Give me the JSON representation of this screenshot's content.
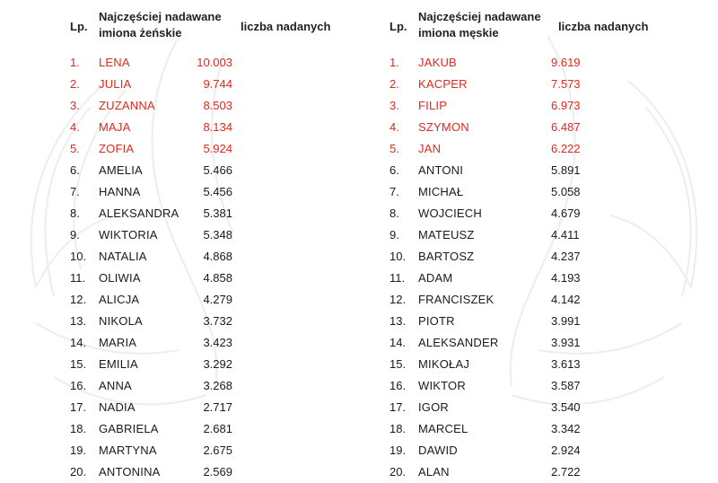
{
  "female": {
    "header": {
      "lp": "Lp.",
      "name_line1": "Najczęściej nadawane",
      "name_line2": "imiona żeńskie",
      "count": "liczba nadanych"
    },
    "rows": [
      {
        "lp": "1.",
        "name": "LENA",
        "count": "10.003"
      },
      {
        "lp": "2.",
        "name": "JULIA",
        "count": "9.744"
      },
      {
        "lp": "3.",
        "name": "ZUZANNA",
        "count": "8.503"
      },
      {
        "lp": "4.",
        "name": "MAJA",
        "count": "8.134"
      },
      {
        "lp": "5.",
        "name": "ZOFIA",
        "count": "5.924"
      },
      {
        "lp": "6.",
        "name": "AMELIA",
        "count": "5.466"
      },
      {
        "lp": "7.",
        "name": "HANNA",
        "count": "5.456"
      },
      {
        "lp": "8.",
        "name": "ALEKSANDRA",
        "count": "5.381"
      },
      {
        "lp": "9.",
        "name": "WIKTORIA",
        "count": "5.348"
      },
      {
        "lp": "10.",
        "name": "NATALIA",
        "count": "4.868"
      },
      {
        "lp": "11.",
        "name": "OLIWIA",
        "count": "4.858"
      },
      {
        "lp": "12.",
        "name": "ALICJA",
        "count": "4.279"
      },
      {
        "lp": "13.",
        "name": "NIKOLA",
        "count": "3.732"
      },
      {
        "lp": "14.",
        "name": "MARIA",
        "count": "3.423"
      },
      {
        "lp": "15.",
        "name": "EMILIA",
        "count": "3.292"
      },
      {
        "lp": "16.",
        "name": "ANNA",
        "count": "3.268"
      },
      {
        "lp": "17.",
        "name": "NADIA",
        "count": "2.717"
      },
      {
        "lp": "18.",
        "name": "GABRIELA",
        "count": "2.681"
      },
      {
        "lp": "19.",
        "name": "MARTYNA",
        "count": "2.675"
      },
      {
        "lp": "20.",
        "name": "ANTONINA",
        "count": "2.569"
      }
    ]
  },
  "male": {
    "header": {
      "lp": "Lp.",
      "name_line1": "Najczęściej nadawane",
      "name_line2": "imiona męskie",
      "count": "liczba nadanych"
    },
    "rows": [
      {
        "lp": "1.",
        "name": "JAKUB",
        "count": "9.619"
      },
      {
        "lp": "2.",
        "name": "KACPER",
        "count": "7.573"
      },
      {
        "lp": "3.",
        "name": "FILIP",
        "count": "6.973"
      },
      {
        "lp": "4.",
        "name": "SZYMON",
        "count": "6.487"
      },
      {
        "lp": "5.",
        "name": "JAN",
        "count": "6.222"
      },
      {
        "lp": "6.",
        "name": "ANTONI",
        "count": "5.891"
      },
      {
        "lp": "7.",
        "name": "MICHAŁ",
        "count": "5.058"
      },
      {
        "lp": "8.",
        "name": "WOJCIECH",
        "count": "4.679"
      },
      {
        "lp": "9.",
        "name": "MATEUSZ",
        "count": "4.411"
      },
      {
        "lp": "10.",
        "name": "BARTOSZ",
        "count": "4.237"
      },
      {
        "lp": "11.",
        "name": "ADAM",
        "count": "4.193"
      },
      {
        "lp": "12.",
        "name": "FRANCISZEK",
        "count": "4.142"
      },
      {
        "lp": "13.",
        "name": "PIOTR",
        "count": "3.991"
      },
      {
        "lp": "14.",
        "name": "ALEKSANDER",
        "count": "3.931"
      },
      {
        "lp": "15.",
        "name": "MIKOŁAJ",
        "count": "3.613"
      },
      {
        "lp": "16.",
        "name": "WIKTOR",
        "count": "3.587"
      },
      {
        "lp": "17.",
        "name": "IGOR",
        "count": "3.540"
      },
      {
        "lp": "18.",
        "name": "MARCEL",
        "count": "3.342"
      },
      {
        "lp": "19.",
        "name": "DAWID",
        "count": "2.924"
      },
      {
        "lp": "20.",
        "name": "ALAN",
        "count": "2.722"
      }
    ]
  },
  "colors": {
    "highlight": "#e0281e",
    "text": "#1a1a1a",
    "watermark": "#eeeeee"
  },
  "decorations": {
    "watermark": "eagle-emblem-icon"
  }
}
